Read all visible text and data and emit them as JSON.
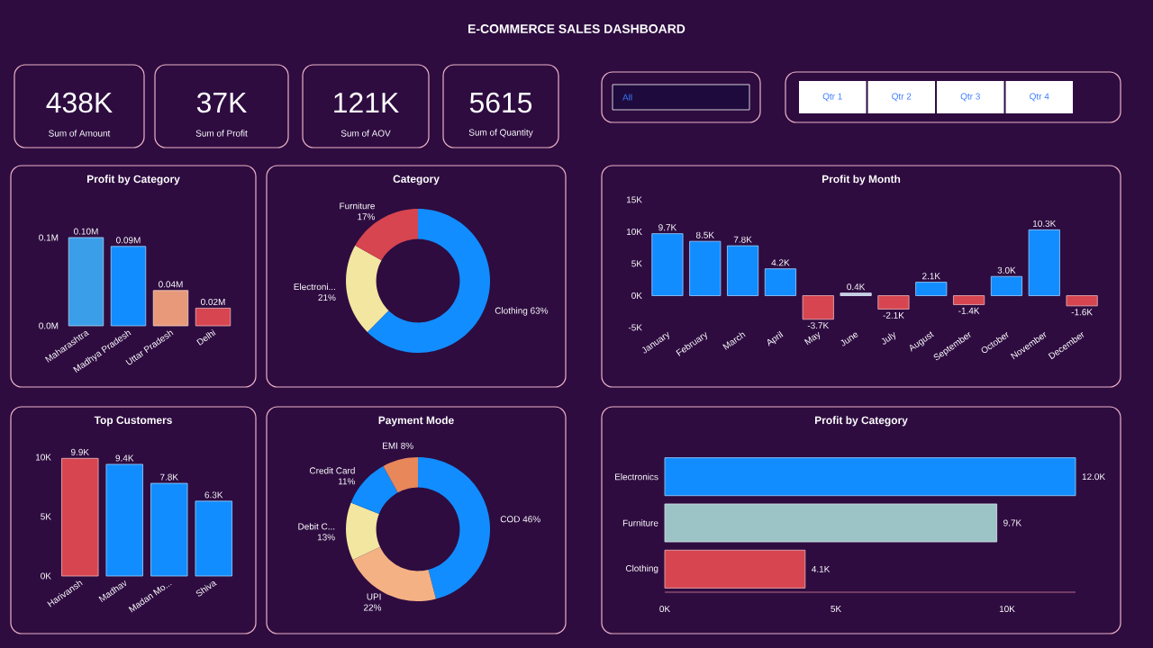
{
  "chart_data": [
    {
      "type": "other",
      "title": "E-COMMERCE SALES DASHBOARD",
      "annotations": [
        "438K",
        "Sum of Amount",
        "37K",
        "Sum of Profit",
        "121K",
        "Sum of AOV",
        "5615",
        "Sum of Quantity",
        "All",
        "Qtr 1",
        "Qtr 2",
        "Qtr 3",
        "Qtr 4"
      ]
    },
    {
      "type": "bar",
      "title": "Profit by Category",
      "categories": [
        "Maharashtra",
        "Madhya Pradesh",
        "Uttar Pradesh",
        "Delhi"
      ],
      "values": [
        0.1,
        0.09,
        0.04,
        0.02
      ],
      "colors": [
        "#3a9ee8",
        "#118dff",
        "#e8997a",
        "#d64550"
      ],
      "value_labels": [
        "0.10M",
        "0.09M",
        "0.04M",
        "0.02M"
      ],
      "ylim": [
        0,
        0.1
      ],
      "yticks": [
        {
          "value": 0,
          "label": "0.0M"
        },
        {
          "value": 0.1,
          "label": "0.1M"
        }
      ]
    },
    {
      "type": "donut",
      "title": "Category",
      "categories": [
        "Clothing",
        "Electroni...",
        "Furniture"
      ],
      "values": [
        63,
        21,
        17
      ],
      "colors": [
        "#118dff",
        "#f2e6a0",
        "#d64550"
      ],
      "value_labels": [
        "63%",
        "21%",
        "17%"
      ]
    },
    {
      "type": "bar",
      "title": "Profit by Month",
      "categories": [
        "January",
        "February",
        "March",
        "April",
        "May",
        "June",
        "July",
        "August",
        "September",
        "October",
        "November",
        "December"
      ],
      "values": [
        9.7,
        8.5,
        7.8,
        4.2,
        -3.7,
        0.4,
        -2.1,
        2.1,
        -1.4,
        3.0,
        10.3,
        -1.6
      ],
      "colors": [
        "#118dff",
        "#118dff",
        "#118dff",
        "#118dff",
        "#d64550",
        "#c0cfe8",
        "#d64550",
        "#118dff",
        "#d64550",
        "#118dff",
        "#118dff",
        "#d64550"
      ],
      "value_labels": [
        "9.7K",
        "8.5K",
        "7.8K",
        "4.2K",
        "-3.7K",
        "0.4K",
        "-2.1K",
        "2.1K",
        "-1.4K",
        "3.0K",
        "10.3K",
        "-1.6K"
      ],
      "ylim": [
        -5,
        15
      ],
      "yticks": [
        {
          "value": -5,
          "label": "-5K"
        },
        {
          "value": 0,
          "label": "0K"
        },
        {
          "value": 5,
          "label": "5K"
        },
        {
          "value": 10,
          "label": "10K"
        },
        {
          "value": 15,
          "label": "15K"
        }
      ]
    },
    {
      "type": "bar",
      "title": "Top Customers",
      "categories": [
        "Harivansh",
        "Madhav",
        "Madan Mo...",
        "Shiva"
      ],
      "values": [
        9.9,
        9.4,
        7.8,
        6.3
      ],
      "colors": [
        "#d64550",
        "#118dff",
        "#118dff",
        "#118dff"
      ],
      "value_labels": [
        "9.9K",
        "9.4K",
        "7.8K",
        "6.3K"
      ],
      "ylim": [
        0,
        10
      ],
      "yticks": [
        {
          "value": 0,
          "label": "0K"
        },
        {
          "value": 5,
          "label": "5K"
        },
        {
          "value": 10,
          "label": "10K"
        }
      ]
    },
    {
      "type": "donut",
      "title": "Payment Mode",
      "categories": [
        "COD",
        "UPI",
        "Debit C...",
        "Credit Card",
        "EMI"
      ],
      "values": [
        46,
        22,
        13,
        11,
        8
      ],
      "colors": [
        "#118dff",
        "#f4b183",
        "#f2e6a0",
        "#118dff",
        "#e8875a"
      ],
      "value_labels": [
        "46%",
        "22%",
        "13%",
        "11%",
        "8%"
      ]
    },
    {
      "type": "bar",
      "orientation": "horizontal",
      "title": "Profit by Category",
      "categories": [
        "Electronics",
        "Furniture",
        "Clothing"
      ],
      "values": [
        12.0,
        9.7,
        4.1
      ],
      "colors": [
        "#118dff",
        "#9cc3c6",
        "#d64550"
      ],
      "value_labels": [
        "12.0K",
        "9.7K",
        "4.1K"
      ],
      "xlim": [
        0,
        12
      ],
      "xticks": [
        {
          "value": 0,
          "label": "0K"
        },
        {
          "value": 5,
          "label": "5K"
        },
        {
          "value": 10,
          "label": "10K"
        }
      ]
    }
  ]
}
